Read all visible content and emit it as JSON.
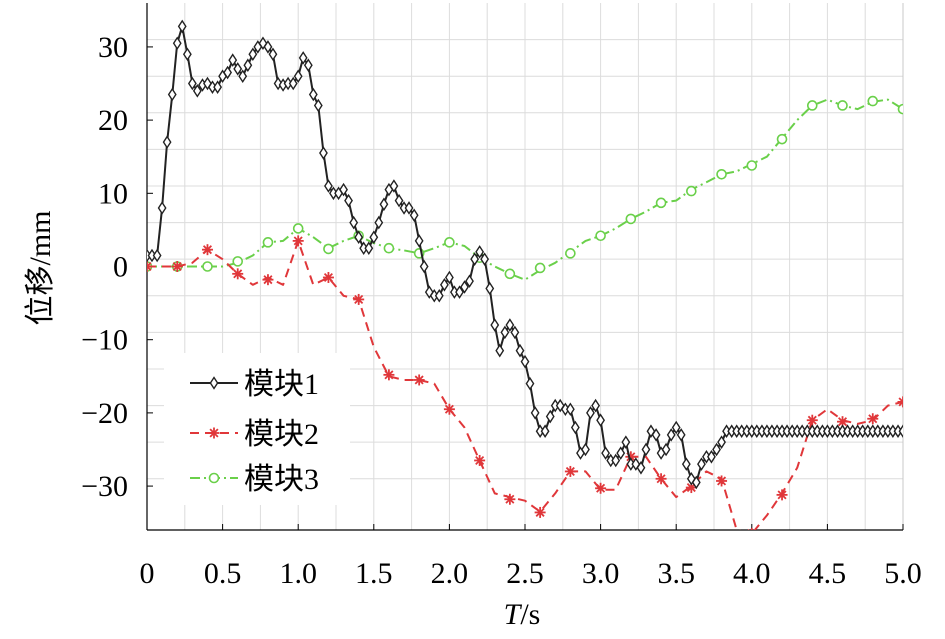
{
  "chart_data": {
    "type": "line",
    "title": "",
    "xlabel_italic": "T",
    "xlabel_rest": "/s",
    "ylabel": "位移/mm",
    "xlim": [
      0,
      5
    ],
    "ylim": [
      -36,
      36
    ],
    "grid": true,
    "legend_position": "lower-left",
    "xticks": [
      0,
      0.5,
      1.0,
      1.5,
      2.0,
      2.5,
      3.0,
      3.5,
      4.0,
      4.5,
      5.0
    ],
    "xtick_labels": [
      "0",
      "0.5",
      "1.0",
      "1.5",
      "2.0",
      "2.5",
      "3.0",
      "3.5",
      "4.0",
      "4.5",
      "5.0"
    ],
    "yticks": [
      30,
      20,
      10,
      0,
      -10,
      -20,
      -30
    ],
    "ytick_labels": [
      "30",
      "20",
      "10",
      "0",
      "−10",
      "−20",
      "−30"
    ],
    "series": [
      {
        "name": "模块1",
        "color": "#222222",
        "line_style": "solid",
        "marker": "diamond",
        "x": [
          0,
          0.033,
          0.067,
          0.1,
          0.133,
          0.167,
          0.2,
          0.233,
          0.267,
          0.3,
          0.333,
          0.367,
          0.4,
          0.433,
          0.467,
          0.5,
          0.533,
          0.567,
          0.6,
          0.633,
          0.667,
          0.7,
          0.733,
          0.767,
          0.8,
          0.833,
          0.867,
          0.9,
          0.933,
          0.967,
          1.0,
          1.033,
          1.067,
          1.1,
          1.133,
          1.167,
          1.2,
          1.233,
          1.267,
          1.3,
          1.333,
          1.367,
          1.4,
          1.433,
          1.467,
          1.5,
          1.533,
          1.567,
          1.6,
          1.633,
          1.667,
          1.7,
          1.733,
          1.767,
          1.8,
          1.833,
          1.867,
          1.9,
          1.933,
          1.967,
          2.0,
          2.033,
          2.067,
          2.1,
          2.133,
          2.167,
          2.2,
          2.233,
          2.267,
          2.3,
          2.333,
          2.367,
          2.4,
          2.433,
          2.467,
          2.5,
          2.533,
          2.567,
          2.6,
          2.633,
          2.667,
          2.7,
          2.733,
          2.767,
          2.8,
          2.833,
          2.867,
          2.9,
          2.933,
          2.967,
          3.0,
          3.033,
          3.067,
          3.1,
          3.133,
          3.167,
          3.2,
          3.233,
          3.267,
          3.3,
          3.333,
          3.367,
          3.4,
          3.433,
          3.467,
          3.5,
          3.533,
          3.567,
          3.6,
          3.633,
          3.667,
          3.7,
          3.733,
          3.767,
          3.8,
          3.833,
          3.867,
          3.9,
          3.933,
          3.967,
          4.0,
          4.033,
          4.067,
          4.1,
          4.133,
          4.167,
          4.2,
          4.233,
          4.267,
          4.3,
          4.333,
          4.367,
          4.4,
          4.433,
          4.467,
          4.5,
          4.533,
          4.567,
          4.6,
          4.633,
          4.667,
          4.7,
          4.733,
          4.767,
          4.8,
          4.833,
          4.867,
          4.9,
          4.933,
          4.967,
          5.0
        ],
        "y": [
          1.5,
          1.5,
          1.5,
          8,
          17,
          23.5,
          30.5,
          32.8,
          29,
          25,
          24,
          24.8,
          25,
          24.5,
          24.5,
          26,
          26.5,
          28.2,
          27,
          26,
          27.5,
          29,
          30,
          30.5,
          30,
          29,
          25,
          24.8,
          25,
          25,
          26,
          28.5,
          27.5,
          23.5,
          22,
          15.5,
          11,
          10,
          10,
          10.5,
          9,
          6,
          4,
          2.5,
          2.5,
          4,
          6,
          8.5,
          10.5,
          11,
          9,
          8,
          8,
          7,
          3.5,
          0,
          -3.5,
          -4,
          -4,
          -2.5,
          -1.5,
          -3.5,
          -3.5,
          -2.8,
          -2,
          1,
          2,
          1,
          -3,
          -8,
          -11.5,
          -9,
          -8,
          -9,
          -11.5,
          -13,
          -16,
          -20,
          -22.5,
          -22.5,
          -20.5,
          -19,
          -19,
          -19.5,
          -19.5,
          -22,
          -25.5,
          -25,
          -20,
          -19,
          -21,
          -25.5,
          -26.5,
          -26.5,
          -25.5,
          -24,
          -27,
          -27,
          -27.5,
          -25,
          -22.5,
          -23,
          -25.5,
          -25,
          -23,
          -22,
          -23,
          -27,
          -29,
          -29.5,
          -27,
          -26,
          -26,
          -25,
          -24,
          -22.5,
          -22.5,
          -22.5,
          -22.5,
          -22.5,
          -22.5,
          -22.5,
          -22.5,
          -22.5,
          -22.5,
          -22.5,
          -22.5,
          -22.5,
          -22.5,
          -22.5,
          -22.5,
          -22.5,
          -22.5,
          -22.5,
          -22.5,
          -22.5,
          -22.5,
          -22.5,
          -22.5,
          -22.5,
          -22.5,
          -22.5,
          -22.5,
          -22.5,
          -22.5,
          -22.5,
          -22.5,
          -22.5,
          -22.5,
          -22.5,
          -22.5
        ]
      },
      {
        "name": "模块2",
        "color": "#e0373a",
        "line_style": "dashed",
        "marker": "asterisk",
        "x": [
          0,
          0.2,
          0.3,
          0.4,
          0.5,
          0.6,
          0.7,
          0.8,
          0.9,
          1.0,
          1.1,
          1.2,
          1.3,
          1.4,
          1.5,
          1.6,
          1.7,
          1.8,
          1.9,
          2.0,
          2.1,
          2.2,
          2.3,
          2.4,
          2.5,
          2.6,
          2.7,
          2.8,
          2.9,
          3.0,
          3.1,
          3.2,
          3.3,
          3.4,
          3.5,
          3.6,
          3.7,
          3.8,
          3.9,
          4.0,
          4.1,
          4.2,
          4.3,
          4.4,
          4.5,
          4.6,
          4.7,
          4.8,
          4.9,
          5.0
        ],
        "y": [
          0,
          0,
          0.5,
          2.3,
          1,
          -1,
          -2.5,
          -1.5,
          -2.5,
          3.5,
          -2.5,
          -1.5,
          -4,
          -4.5,
          -11,
          -15,
          -15.5,
          -15.5,
          -16,
          -19.5,
          -22,
          -26.5,
          -31,
          -31.5,
          -32,
          -33.5,
          -31,
          -28,
          -28,
          -30.5,
          -30.5,
          -26,
          -26,
          -29,
          -31.5,
          -30,
          -28,
          -29,
          -36,
          -36.5,
          -34,
          -31,
          -27.5,
          -21,
          -19.5,
          -21,
          -21.5,
          -21,
          -19,
          -18.5
        ],
        "marker_x": [
          0,
          0.2,
          0.4,
          0.6,
          0.8,
          1.0,
          1.2,
          1.4,
          1.6,
          1.8,
          2.0,
          2.2,
          2.4,
          2.6,
          2.8,
          3.0,
          3.2,
          3.4,
          3.6,
          3.8,
          4.0,
          4.2,
          4.4,
          4.6,
          4.8,
          5.0
        ],
        "marker_y": [
          0,
          0,
          2.3,
          -1,
          -1.8,
          3.5,
          -1.5,
          -4.5,
          -14.8,
          -15.5,
          -19.5,
          -26.5,
          -31.8,
          -33.6,
          -28,
          -30.3,
          -26,
          -29,
          -30.2,
          -29.3,
          -36.5,
          -31.2,
          -21,
          -21.2,
          -20.8,
          -18.5
        ]
      },
      {
        "name": "模块3",
        "color": "#6ad04a",
        "line_style": "dash-dot",
        "marker": "circle",
        "x": [
          0,
          0.1,
          0.2,
          0.3,
          0.4,
          0.5,
          0.6,
          0.7,
          0.8,
          0.9,
          1.0,
          1.1,
          1.2,
          1.3,
          1.4,
          1.5,
          1.6,
          1.7,
          1.8,
          1.9,
          2.0,
          2.1,
          2.2,
          2.3,
          2.4,
          2.5,
          2.6,
          2.7,
          2.8,
          2.9,
          3.0,
          3.1,
          3.2,
          3.3,
          3.4,
          3.5,
          3.6,
          3.7,
          3.8,
          3.9,
          4.0,
          4.1,
          4.2,
          4.3,
          4.4,
          4.5,
          4.6,
          4.7,
          4.8,
          4.9,
          5.0
        ],
        "y": [
          0,
          0,
          0,
          0,
          0,
          0,
          0.5,
          1.5,
          3.3,
          3.5,
          5.2,
          4,
          2.5,
          3.5,
          4.2,
          3.2,
          2.5,
          2.2,
          1.8,
          2.5,
          3.3,
          2.8,
          1.2,
          0,
          -1,
          -1.8,
          -0.5,
          0.5,
          2,
          3.5,
          4.2,
          5.2,
          6.5,
          7.5,
          8.7,
          9,
          10.5,
          11.5,
          12.6,
          13,
          14,
          15,
          17.5,
          20,
          22,
          22.8,
          22,
          21.5,
          22.5,
          22.8,
          21.5
        ],
        "marker_x": [
          0,
          0.2,
          0.4,
          0.6,
          0.8,
          1.0,
          1.2,
          1.4,
          1.6,
          1.8,
          2.0,
          2.2,
          2.4,
          2.6,
          2.8,
          3.0,
          3.2,
          3.4,
          3.6,
          3.8,
          4.0,
          4.2,
          4.4,
          4.6,
          4.8,
          5.0
        ],
        "marker_y": [
          0,
          0,
          0,
          0.7,
          3.3,
          5.2,
          2.4,
          4.2,
          2.5,
          1.8,
          3.3,
          1.2,
          -1,
          -0.2,
          1.8,
          4.2,
          6.5,
          8.7,
          10.3,
          12.6,
          13.8,
          17.4,
          22,
          22,
          22.6,
          21.5
        ]
      }
    ]
  }
}
